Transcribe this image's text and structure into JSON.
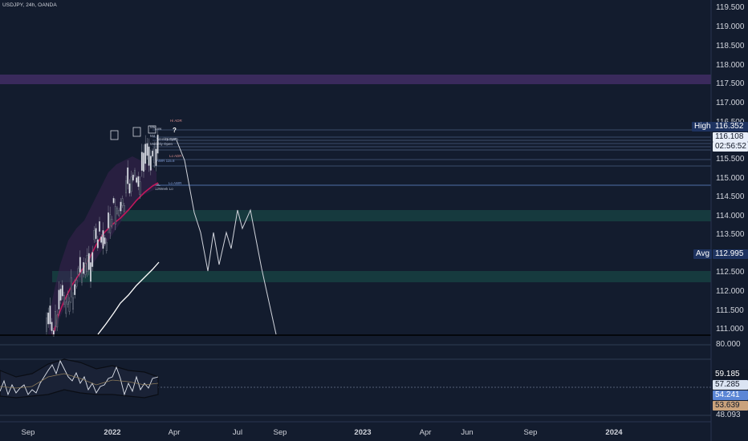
{
  "symbol_title": "USDJPY, 24h, OANDA",
  "price_axis": [
    "119.500",
    "119.000",
    "118.500",
    "118.000",
    "117.500",
    "117.000",
    "116.500",
    "115.500",
    "115.000",
    "114.500",
    "114.000",
    "113.500",
    "113.000",
    "112.500",
    "112.000",
    "111.500",
    "111.000"
  ],
  "last_price": {
    "value": "116.108",
    "countdown": "02:56:52"
  },
  "high_tag": {
    "label": "High",
    "value": "116.352"
  },
  "avg_tag": {
    "label": "Avg",
    "value": "112.995"
  },
  "indicator_axis": {
    "top": "80.000",
    "bottom": "48.093"
  },
  "indicator_tags": [
    "59.185",
    "57.285",
    "54.241",
    "53.639"
  ],
  "time_axis": [
    "Sep",
    "2022",
    "Apr",
    "Jul",
    "Sep",
    "2023",
    "Apr",
    "Jun",
    "Sep",
    "2024"
  ],
  "question_mark": "?",
  "level_labels": [
    "Hi ADR",
    "M5",
    "Low",
    "M4",
    "Weekly Open",
    "Monthly Open",
    "HiAWR",
    "Lo ADR",
    "AWR 115.8",
    "Lo AWR",
    "WL",
    "12Week Lo"
  ],
  "colors": {
    "background": "#131c2e",
    "purple_zone": "#3a2a5c",
    "green_zone": "#163a3e",
    "last_price_tag": "#e8eefa",
    "countdown_tag": "#1d2b45",
    "avg_tag": "#1e3360",
    "high_tag": "#1e3360",
    "indicator_white": "#111827",
    "indicator_gray": "#dbe4f3",
    "indicator_blue": "#5b86d6",
    "indicator_tan": "#caa27c"
  }
}
